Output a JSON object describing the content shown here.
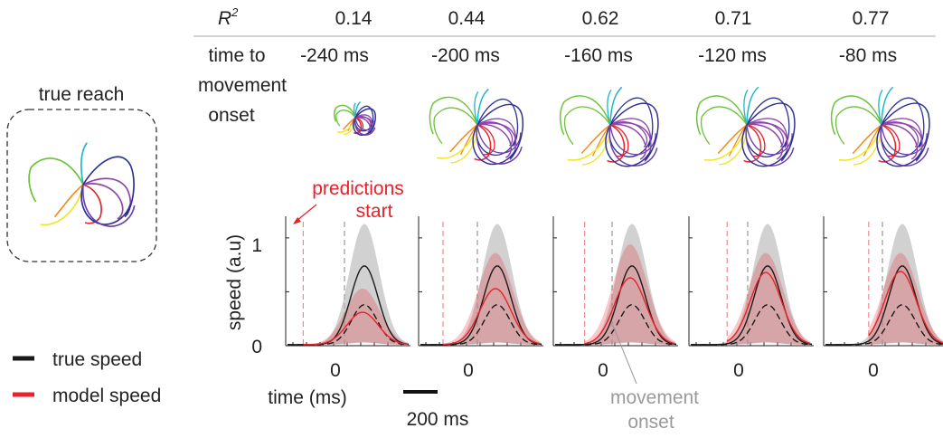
{
  "header": {
    "r2_label": "R",
    "r2_sup": "2",
    "time_label_lines": [
      "time to",
      "movement",
      "onset"
    ]
  },
  "true_reach": {
    "title": "true reach"
  },
  "legend": {
    "items": [
      {
        "label": "true speed",
        "color": "#1a1a1a"
      },
      {
        "label": "model speed",
        "color": "#e8222a"
      }
    ]
  },
  "annotations": {
    "predictions_start": [
      "predictions",
      "start"
    ],
    "movement_onset": [
      "movement",
      "onset"
    ],
    "scalebar_label": "200 ms"
  },
  "chart_data": {
    "type": "line",
    "ylabel": "speed (a.u)",
    "xlabel": "time (ms)",
    "ylim": [
      0,
      1.15
    ],
    "yticks": [
      "0",
      "1"
    ],
    "xtick": "0",
    "panels": [
      {
        "r2": "0.14",
        "time_to_onset": "-240 ms",
        "onset_ms": -240,
        "true_speed": {
          "peak": 0.73,
          "dashed_peak": 0.37,
          "band_peak": 1.12
        },
        "model_speed": {
          "peak": 0.3,
          "band_peak": 0.52
        }
      },
      {
        "r2": "0.44",
        "time_to_onset": "-200 ms",
        "onset_ms": -200,
        "true_speed": {
          "peak": 0.73,
          "dashed_peak": 0.37,
          "band_peak": 1.12
        },
        "model_speed": {
          "peak": 0.52,
          "band_peak": 0.85
        }
      },
      {
        "r2": "0.62",
        "time_to_onset": "-160 ms",
        "onset_ms": -160,
        "true_speed": {
          "peak": 0.73,
          "dashed_peak": 0.37,
          "band_peak": 1.12
        },
        "model_speed": {
          "peak": 0.62,
          "band_peak": 0.93
        }
      },
      {
        "r2": "0.71",
        "time_to_onset": "-120 ms",
        "onset_ms": -120,
        "true_speed": {
          "peak": 0.73,
          "dashed_peak": 0.37,
          "band_peak": 1.12
        },
        "model_speed": {
          "peak": 0.67,
          "band_peak": 0.85
        }
      },
      {
        "r2": "0.77",
        "time_to_onset": "-80 ms",
        "onset_ms": -80,
        "true_speed": {
          "peak": 0.73,
          "dashed_peak": 0.37,
          "band_peak": 1.12
        },
        "model_speed": {
          "peak": 0.68,
          "band_peak": 0.85
        }
      }
    ]
  },
  "reach_colors": [
    "#f2e41e",
    "#6cc23a",
    "#1ab7c9",
    "#f28b1e",
    "#e8222a",
    "#8e44ad",
    "#2e3192",
    "#6a3fb0"
  ]
}
